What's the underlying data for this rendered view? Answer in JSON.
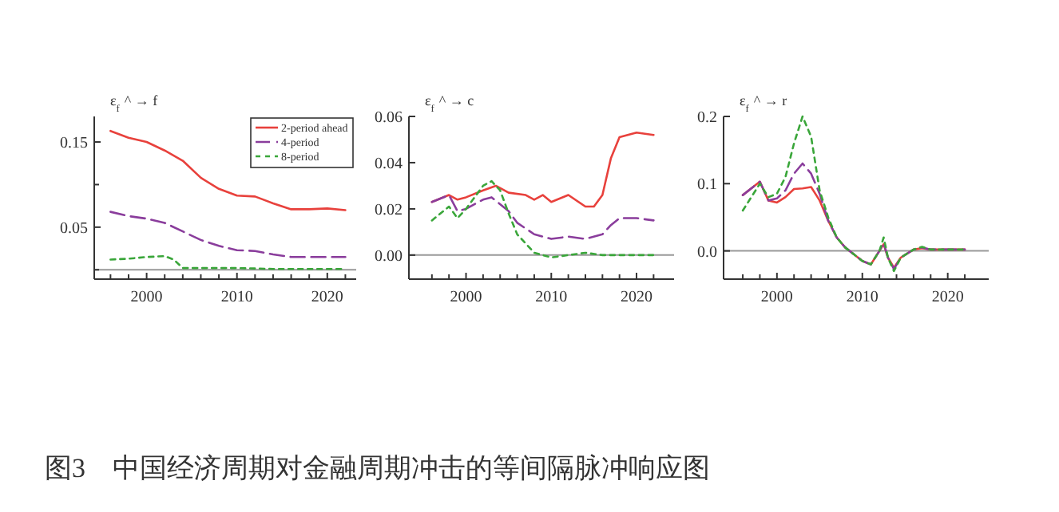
{
  "chart_data": [
    {
      "type": "line",
      "title": "ε$_{f}$ ^ → f",
      "x": [
        1996,
        1998,
        2000,
        2002,
        2004,
        2006,
        2008,
        2010,
        2012,
        2014,
        2016,
        2018,
        2020,
        2022
      ],
      "xlim": [
        1994.2,
        2023.2
      ],
      "ylim": [
        -0.011,
        0.18
      ],
      "xticks": [
        {
          "value": 1996,
          "label": null
        },
        {
          "value": 1998,
          "label": null
        },
        2000,
        {
          "value": 2002,
          "label": null
        },
        {
          "value": 2004,
          "label": null
        },
        {
          "value": 2006,
          "label": null
        },
        {
          "value": 2008,
          "label": null
        },
        2010,
        {
          "value": 2012,
          "label": null
        },
        {
          "value": 2014,
          "label": null
        },
        {
          "value": 2016,
          "label": null
        },
        {
          "value": 2018,
          "label": null
        },
        2020,
        {
          "value": 2022,
          "label": null
        }
      ],
      "yticks": [
        {
          "value": 0.0,
          "label": null
        },
        {
          "value": 0.05,
          "label": "0.05"
        },
        {
          "value": 0.1,
          "label": null
        },
        {
          "value": 0.15,
          "label": "0.15"
        }
      ],
      "legend": "top right",
      "ref_lines": [
        {
          "axis": "y",
          "value": 0,
          "color": "#999999"
        }
      ],
      "series": [
        {
          "name": "2-period ahead",
          "color": "#e8413c",
          "line_style": "solid",
          "values": [
            0.163,
            0.155,
            0.15,
            0.14,
            0.128,
            0.108,
            0.095,
            0.087,
            0.086,
            0.078,
            0.071,
            0.071,
            0.072,
            0.07
          ]
        },
        {
          "name": "4-period",
          "color": "#8a3d9c",
          "line_style": "dashed",
          "values": [
            0.068,
            0.063,
            0.06,
            0.055,
            0.045,
            0.035,
            0.028,
            0.023,
            0.022,
            0.018,
            0.015,
            0.015,
            0.015,
            0.015
          ]
        },
        {
          "name": "8-period",
          "color": "#3aa63a",
          "line_style": "dotted",
          "x": [
            1996,
            1998,
            2000,
            2002,
            2003,
            2004,
            2006,
            2010,
            2014,
            2018,
            2022
          ],
          "values": [
            0.012,
            0.013,
            0.015,
            0.016,
            0.012,
            0.002,
            0.002,
            0.002,
            0.001,
            0.001,
            0.001
          ]
        }
      ]
    },
    {
      "type": "line",
      "title": "ε$_{f}$ ^ → c",
      "xlim": [
        1993.3,
        2024.4
      ],
      "ylim": [
        -0.0104,
        0.06
      ],
      "xticks": [
        {
          "value": 1996,
          "label": null
        },
        {
          "value": 1998,
          "label": null
        },
        2000,
        {
          "value": 2002,
          "label": null
        },
        {
          "value": 2004,
          "label": null
        },
        {
          "value": 2006,
          "label": null
        },
        {
          "value": 2008,
          "label": null
        },
        2010,
        {
          "value": 2012,
          "label": null
        },
        {
          "value": 2014,
          "label": null
        },
        {
          "value": 2016,
          "label": null
        },
        {
          "value": 2018,
          "label": null
        },
        2020,
        {
          "value": 2022,
          "label": null
        }
      ],
      "yticks": [
        {
          "value": 0.0,
          "label": "0.00"
        },
        {
          "value": 0.02,
          "label": "0.02"
        },
        {
          "value": 0.04,
          "label": "0.04"
        },
        {
          "value": 0.06,
          "label": "0.06"
        }
      ],
      "ref_lines": [
        {
          "axis": "y",
          "value": 0,
          "color": "#999999"
        }
      ],
      "series": [
        {
          "color": "#e8413c",
          "line_style": "solid",
          "x": [
            1996,
            1998,
            1999,
            2000,
            2002,
            2003.5,
            2005,
            2007,
            2008,
            2009,
            2010,
            2012,
            2014,
            2015,
            2016,
            2017,
            2018,
            2020,
            2022
          ],
          "values": [
            0.023,
            0.026,
            0.024,
            0.025,
            0.028,
            0.03,
            0.027,
            0.026,
            0.024,
            0.026,
            0.023,
            0.026,
            0.021,
            0.021,
            0.026,
            0.042,
            0.051,
            0.053,
            0.052
          ]
        },
        {
          "color": "#8a3d9c",
          "line_style": "dashed",
          "x": [
            1996,
            1998,
            1999,
            2000,
            2002,
            2003,
            2005,
            2006,
            2008,
            2010,
            2012,
            2014,
            2016,
            2017,
            2018,
            2020,
            2022
          ],
          "values": [
            0.023,
            0.026,
            0.019,
            0.02,
            0.024,
            0.025,
            0.019,
            0.014,
            0.009,
            0.007,
            0.008,
            0.007,
            0.009,
            0.013,
            0.016,
            0.016,
            0.015
          ]
        },
        {
          "color": "#3aa63a",
          "line_style": "dotted",
          "x": [
            1996,
            1998,
            1999,
            2000,
            2002,
            2003,
            2004,
            2005,
            2006,
            2008,
            2010,
            2012,
            2014,
            2016,
            2018,
            2022
          ],
          "values": [
            0.015,
            0.021,
            0.016,
            0.02,
            0.03,
            0.032,
            0.028,
            0.018,
            0.009,
            0.001,
            -0.001,
            0.0,
            0.001,
            0.0,
            0.0,
            0.0
          ]
        }
      ]
    },
    {
      "type": "line",
      "title": "ε$_{f}$ ^ → r",
      "xlim": [
        1993.75,
        2024.8
      ],
      "ylim": [
        -0.042,
        0.2
      ],
      "xticks": [
        {
          "value": 1996,
          "label": null
        },
        {
          "value": 1998,
          "label": null
        },
        2000,
        {
          "value": 2002,
          "label": null
        },
        {
          "value": 2004,
          "label": null
        },
        {
          "value": 2006,
          "label": null
        },
        {
          "value": 2008,
          "label": null
        },
        2010,
        {
          "value": 2012,
          "label": null
        },
        {
          "value": 2014,
          "label": null
        },
        {
          "value": 2016,
          "label": null
        },
        {
          "value": 2018,
          "label": null
        },
        2020,
        {
          "value": 2022,
          "label": null
        }
      ],
      "yticks": [
        {
          "value": 0.0,
          "label": "0.0"
        },
        {
          "value": 0.1,
          "label": "0.1"
        },
        {
          "value": 0.2,
          "label": "0.2"
        }
      ],
      "ref_lines": [
        {
          "axis": "y",
          "value": 0,
          "color": "#999999"
        }
      ],
      "x": [
        1996,
        1998,
        1999,
        2000,
        2001,
        2002,
        2003,
        2004,
        2005,
        2006,
        2007,
        2008,
        2009,
        2010,
        2011,
        2012,
        2012.5,
        2013,
        2013.7,
        2014.5,
        2016,
        2017,
        2018,
        2022
      ],
      "series": [
        {
          "color": "#e8413c",
          "line_style": "solid",
          "values": [
            0.083,
            0.103,
            0.075,
            0.072,
            0.08,
            0.092,
            0.093,
            0.095,
            0.075,
            0.045,
            0.02,
            0.005,
            -0.005,
            -0.015,
            -0.02,
            0.0,
            0.01,
            -0.01,
            -0.025,
            -0.01,
            0.002,
            0.004,
            0.002,
            0.002
          ]
        },
        {
          "color": "#8a3d9c",
          "line_style": "dashed",
          "values": [
            0.083,
            0.103,
            0.075,
            0.078,
            0.09,
            0.115,
            0.13,
            0.115,
            0.085,
            0.045,
            0.02,
            0.005,
            -0.005,
            -0.015,
            -0.02,
            0.0,
            0.012,
            -0.01,
            -0.027,
            -0.01,
            0.002,
            0.005,
            0.002,
            0.002
          ]
        },
        {
          "color": "#3aa63a",
          "line_style": "dotted",
          "values": [
            0.06,
            0.1,
            0.08,
            0.085,
            0.11,
            0.16,
            0.2,
            0.17,
            0.09,
            0.05,
            0.02,
            0.005,
            -0.005,
            -0.015,
            -0.02,
            0.0,
            0.02,
            -0.01,
            -0.03,
            -0.01,
            0.002,
            0.006,
            0.002,
            0.002
          ]
        }
      ]
    },
    {
      "type": "other",
      "title": "图3　中国经济周期对金融周期冲击的等间隔脉冲响应图"
    }
  ]
}
